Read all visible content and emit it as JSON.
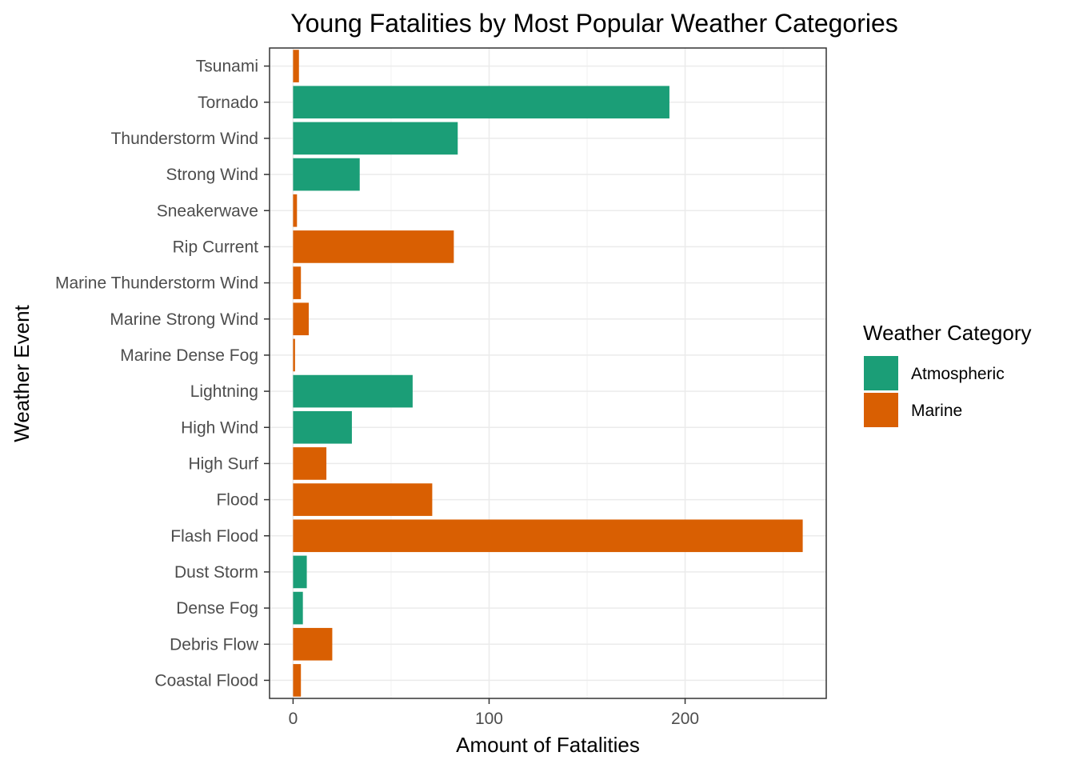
{
  "chart_data": {
    "type": "bar",
    "orientation": "horizontal",
    "title": "Young Fatalities by Most Popular Weather Categories",
    "xlabel": "Amount of Fatalities",
    "ylabel": "Weather Event",
    "xlim": [
      -12,
      272
    ],
    "x_ticks": [
      0,
      100,
      200
    ],
    "x_tick_labels": [
      "0",
      "100",
      "200"
    ],
    "grid": true,
    "legend": {
      "title": "Weather Category",
      "position": "right",
      "entries": [
        {
          "name": "Atmospheric",
          "color": "#1b9e77"
        },
        {
          "name": "Marine",
          "color": "#d95f02"
        }
      ]
    },
    "categories": [
      "Tsunami",
      "Tornado",
      "Thunderstorm Wind",
      "Strong Wind",
      "Sneakerwave",
      "Rip Current",
      "Marine Thunderstorm Wind",
      "Marine Strong Wind",
      "Marine Dense Fog",
      "Lightning",
      "High Wind",
      "High Surf",
      "Flood",
      "Flash Flood",
      "Dust Storm",
      "Dense Fog",
      "Debris Flow",
      "Coastal Flood"
    ],
    "values": [
      3,
      192,
      84,
      34,
      2,
      82,
      4,
      8,
      1,
      61,
      30,
      17,
      71,
      260,
      7,
      5,
      20,
      4
    ],
    "category_group": [
      "Marine",
      "Atmospheric",
      "Atmospheric",
      "Atmospheric",
      "Marine",
      "Marine",
      "Marine",
      "Marine",
      "Marine",
      "Atmospheric",
      "Atmospheric",
      "Marine",
      "Marine",
      "Marine",
      "Atmospheric",
      "Atmospheric",
      "Marine",
      "Marine"
    ]
  }
}
